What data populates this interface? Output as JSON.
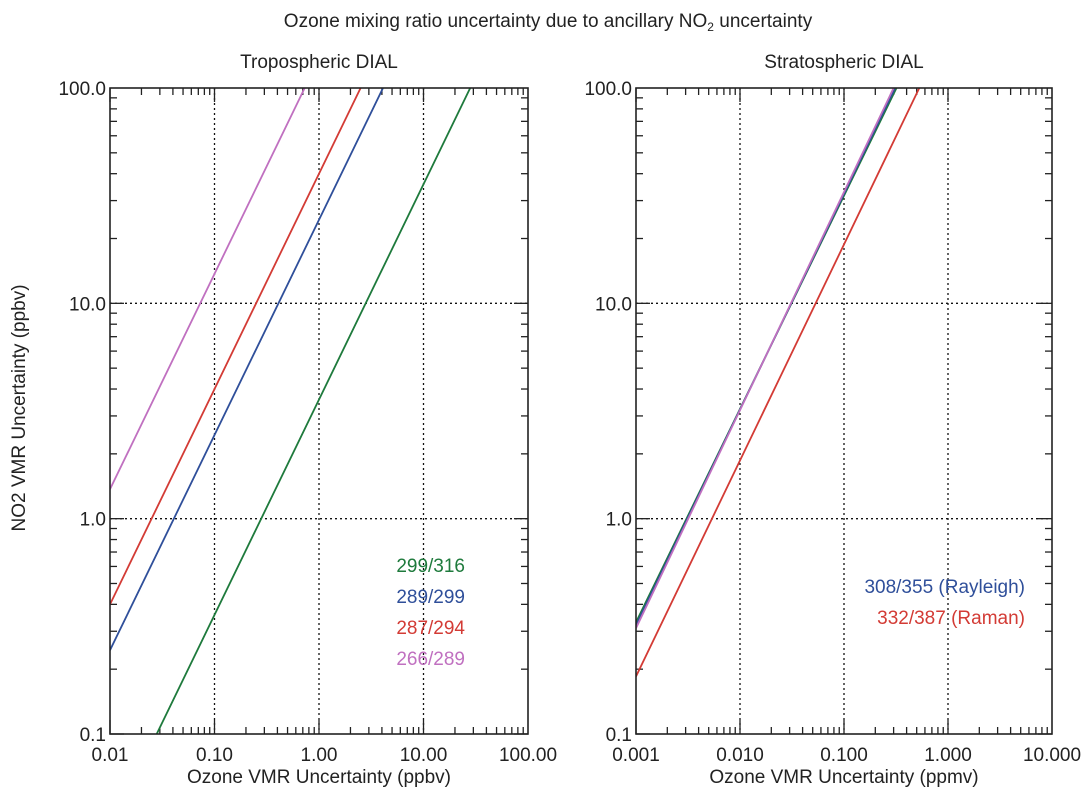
{
  "figure": {
    "title_prefix": "Ozone mixing ratio uncertainty due to ancillary NO",
    "title_sub": "2",
    "title_suffix": " uncertainty",
    "ylabel": "NO2 VMR Uncertainty (ppbv)"
  },
  "colors": {
    "green": "#1e7a3c",
    "blue": "#2f4f9a",
    "red": "#d33b35",
    "magenta": "#c070c0"
  },
  "chart_data": [
    {
      "type": "line",
      "title": "Tropospheric DIAL",
      "xlabel": "Ozone VMR Uncertainty (ppbv)",
      "ylabel": "NO2 VMR Uncertainty (ppbv)",
      "xscale": "log",
      "yscale": "log",
      "xlim": [
        0.01,
        100
      ],
      "ylim": [
        0.1,
        100
      ],
      "xticklabels": [
        "0.01",
        "0.10",
        "1.00",
        "10.00",
        "100.00"
      ],
      "yticklabels": [
        "0.1",
        "1.0",
        "10.0",
        "100.0"
      ],
      "grid": true,
      "legend_position": "bottom-right",
      "series": [
        {
          "name": "299/316",
          "color": "green",
          "x": [
            0.028,
            28.0
          ],
          "y": [
            0.1,
            100
          ]
        },
        {
          "name": "289/299",
          "color": "blue",
          "x": [
            0.01,
            4.1
          ],
          "y": [
            0.245,
            100
          ]
        },
        {
          "name": "287/294",
          "color": "red",
          "x": [
            0.01,
            2.5
          ],
          "y": [
            0.4,
            100
          ]
        },
        {
          "name": "266/289",
          "color": "magenta",
          "x": [
            0.01,
            0.73
          ],
          "y": [
            1.37,
            100
          ]
        }
      ]
    },
    {
      "type": "line",
      "title": "Stratospheric DIAL",
      "xlabel": "Ozone VMR Uncertainty (ppmv)",
      "ylabel": "",
      "xscale": "log",
      "yscale": "log",
      "xlim": [
        0.001,
        10
      ],
      "ylim": [
        0.1,
        100
      ],
      "xticklabels": [
        "0.001",
        "0.010",
        "0.100",
        "1.000",
        "10.000"
      ],
      "yticklabels": [
        "0.1",
        "1.0",
        "10.0",
        "100.0"
      ],
      "grid": true,
      "legend_position": "bottom-right",
      "series": [
        {
          "name": "",
          "color": "green",
          "x": [
            0.001,
            0.32
          ],
          "y": [
            0.33,
            100
          ]
        },
        {
          "name": "308/355 (Rayleigh)",
          "color": "blue",
          "x": [
            0.001,
            0.31
          ],
          "y": [
            0.32,
            100
          ]
        },
        {
          "name": "",
          "color": "magenta",
          "x": [
            0.001,
            0.3
          ],
          "y": [
            0.31,
            100
          ]
        },
        {
          "name": "332/387 (Raman)",
          "color": "red",
          "x": [
            0.001,
            0.53
          ],
          "y": [
            0.185,
            100
          ]
        }
      ]
    }
  ]
}
